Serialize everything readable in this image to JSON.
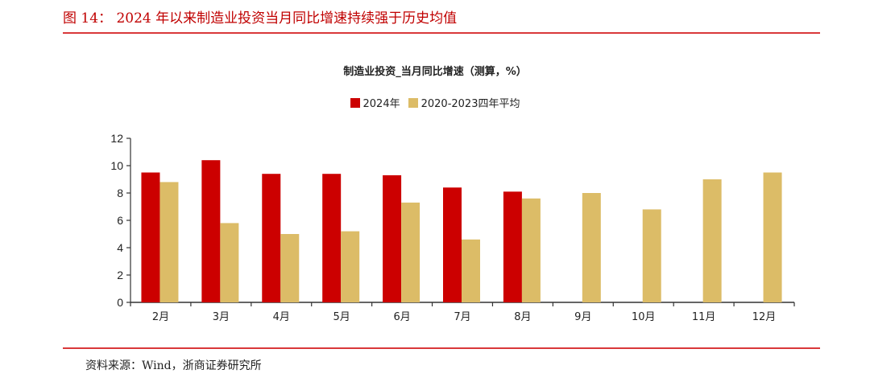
{
  "figure": {
    "title": "图 14：  2024 年以来制造业投资当月同比增速持续强于历史均值",
    "source": "资料来源：Wind，浙商证券研究所"
  },
  "colors": {
    "series_2024": "#cc0000",
    "series_avg": "#dcbc67",
    "title_red": "#c00000",
    "rule": "#d9383a"
  },
  "chart_data": {
    "type": "bar",
    "title": "制造业投资_当月同比增速（测算，%）",
    "xlabel": "",
    "ylabel": "",
    "ylim": [
      0,
      12
    ],
    "yticks": [
      0,
      2,
      4,
      6,
      8,
      10,
      12
    ],
    "categories": [
      "2月",
      "3月",
      "4月",
      "5月",
      "6月",
      "7月",
      "8月",
      "9月",
      "10月",
      "11月",
      "12月"
    ],
    "series": [
      {
        "name": "2024年",
        "values": [
          9.5,
          10.4,
          9.4,
          9.4,
          9.3,
          8.4,
          8.1,
          null,
          null,
          null,
          null
        ]
      },
      {
        "name": "2020-2023四年平均",
        "values": [
          8.8,
          5.8,
          5.0,
          5.2,
          7.3,
          4.6,
          7.6,
          8.0,
          6.8,
          9.0,
          9.5
        ]
      }
    ],
    "legend_position": "top",
    "grid": false
  }
}
